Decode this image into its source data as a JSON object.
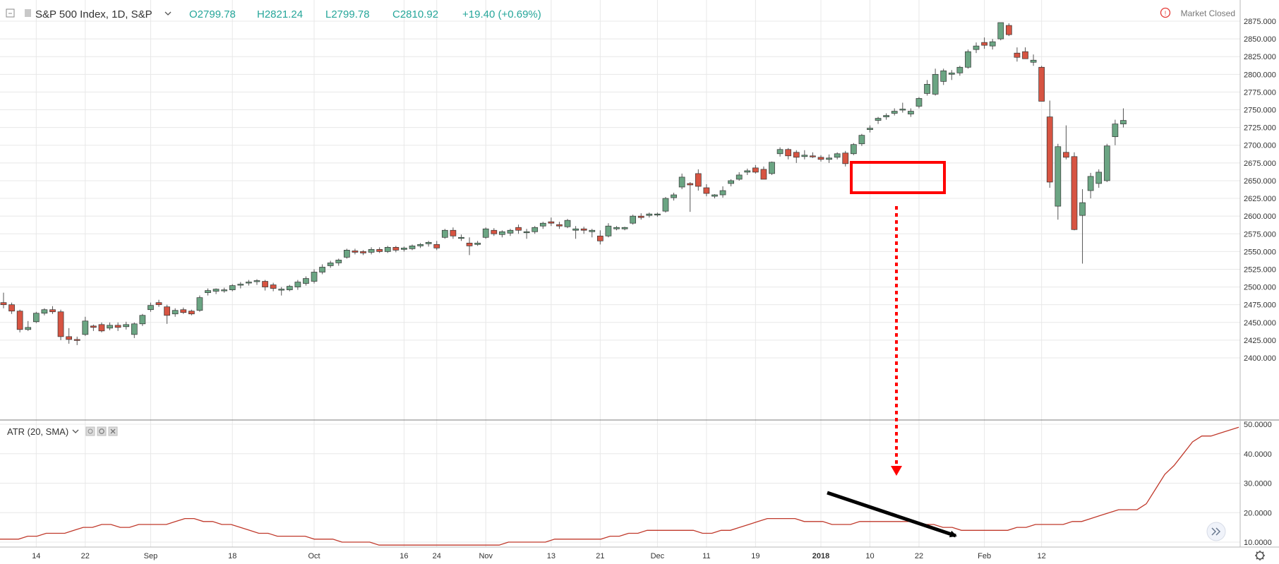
{
  "header": {
    "symbol_title": "S&P 500 Index, 1D, S&P",
    "open": "O2799.78",
    "high": "H2821.24",
    "low": "L2799.78",
    "close": "C2810.92",
    "change": "+19.40 (+0.69%)",
    "market_status": "Market Closed"
  },
  "indicator": {
    "label": "ATR (20, SMA)"
  },
  "colors": {
    "up": "#6ba583",
    "down": "#d75442",
    "wick": "#555555",
    "atr_line": "#c0392b",
    "header_values": "#26a69a",
    "highlight": "#ff0000"
  },
  "chart_data": [
    {
      "type": "candlestick",
      "title": "S&P 500 Index, 1D, S&P",
      "x_tick_labels": [
        "14",
        "22",
        "Sep",
        "18",
        "Oct",
        "16",
        "24",
        "Nov",
        "13",
        "21",
        "Dec",
        "11",
        "19",
        "2018",
        "10",
        "22",
        "Feb",
        "12"
      ],
      "y_tick_labels": [
        "2875.000",
        "2850.000",
        "2825.000",
        "2800.000",
        "2775.000",
        "2750.000",
        "2725.000",
        "2700.000",
        "2675.000",
        "2650.000",
        "2625.000",
        "2600.000",
        "2575.000",
        "2550.000",
        "2525.000",
        "2500.000",
        "2475.000",
        "2450.000",
        "2425.000",
        "2400.000"
      ],
      "ylim": [
        2391,
        2885
      ],
      "grid": true,
      "candles": [
        [
          2478,
          2492,
          2470,
          2475
        ],
        [
          2475,
          2478,
          2462,
          2466
        ],
        [
          2466,
          2468,
          2436,
          2440
        ],
        [
          2440,
          2452,
          2438,
          2443
        ],
        [
          2451,
          2465,
          2449,
          2463
        ],
        [
          2463,
          2470,
          2460,
          2468
        ],
        [
          2468,
          2473,
          2462,
          2465
        ],
        [
          2465,
          2468,
          2425,
          2430
        ],
        [
          2430,
          2442,
          2420,
          2426
        ],
        [
          2426,
          2430,
          2418,
          2425
        ],
        [
          2433,
          2458,
          2431,
          2452
        ],
        [
          2445,
          2447,
          2438,
          2443
        ],
        [
          2447,
          2450,
          2436,
          2438
        ],
        [
          2442,
          2450,
          2439,
          2446
        ],
        [
          2446,
          2450,
          2438,
          2443
        ],
        [
          2444,
          2451,
          2440,
          2447
        ],
        [
          2433,
          2450,
          2428,
          2448
        ],
        [
          2448,
          2462,
          2445,
          2460
        ],
        [
          2468,
          2478,
          2465,
          2474
        ],
        [
          2478,
          2482,
          2472,
          2475
        ],
        [
          2472,
          2475,
          2448,
          2460
        ],
        [
          2462,
          2470,
          2458,
          2467
        ],
        [
          2468,
          2471,
          2462,
          2464
        ],
        [
          2466,
          2468,
          2460,
          2462
        ],
        [
          2467,
          2488,
          2465,
          2485
        ],
        [
          2492,
          2498,
          2488,
          2495
        ],
        [
          2494,
          2498,
          2490,
          2497
        ],
        [
          2495,
          2499,
          2492,
          2496
        ],
        [
          2496,
          2504,
          2494,
          2502
        ],
        [
          2503,
          2507,
          2498,
          2504
        ],
        [
          2506,
          2510,
          2502,
          2507
        ],
        [
          2508,
          2511,
          2503,
          2509
        ],
        [
          2508,
          2510,
          2495,
          2500
        ],
        [
          2503,
          2506,
          2494,
          2498
        ],
        [
          2496,
          2500,
          2488,
          2497
        ],
        [
          2496,
          2503,
          2494,
          2501
        ],
        [
          2500,
          2510,
          2496,
          2507
        ],
        [
          2505,
          2515,
          2502,
          2512
        ],
        [
          2508,
          2525,
          2505,
          2521
        ],
        [
          2521,
          2532,
          2518,
          2528
        ],
        [
          2530,
          2537,
          2527,
          2534
        ],
        [
          2534,
          2540,
          2530,
          2538
        ],
        [
          2542,
          2554,
          2540,
          2552
        ],
        [
          2551,
          2554,
          2546,
          2549
        ],
        [
          2550,
          2552,
          2545,
          2548
        ],
        [
          2549,
          2556,
          2546,
          2553
        ],
        [
          2553,
          2556,
          2548,
          2550
        ],
        [
          2550,
          2558,
          2548,
          2556
        ],
        [
          2556,
          2558,
          2549,
          2552
        ],
        [
          2553,
          2557,
          2550,
          2555
        ],
        [
          2554,
          2560,
          2552,
          2558
        ],
        [
          2558,
          2562,
          2555,
          2560
        ],
        [
          2561,
          2565,
          2557,
          2563
        ],
        [
          2560,
          2565,
          2552,
          2555
        ],
        [
          2570,
          2582,
          2568,
          2580
        ],
        [
          2580,
          2584,
          2568,
          2572
        ],
        [
          2570,
          2574,
          2565,
          2570
        ],
        [
          2562,
          2570,
          2545,
          2558
        ],
        [
          2560,
          2565,
          2558,
          2562
        ],
        [
          2570,
          2584,
          2568,
          2582
        ],
        [
          2580,
          2583,
          2572,
          2575
        ],
        [
          2574,
          2580,
          2570,
          2578
        ],
        [
          2576,
          2582,
          2572,
          2580
        ],
        [
          2584,
          2588,
          2575,
          2580
        ],
        [
          2578,
          2582,
          2568,
          2578
        ],
        [
          2578,
          2586,
          2575,
          2584
        ],
        [
          2586,
          2592,
          2582,
          2590
        ],
        [
          2592,
          2598,
          2586,
          2590
        ],
        [
          2588,
          2592,
          2582,
          2586
        ],
        [
          2585,
          2596,
          2583,
          2594
        ],
        [
          2580,
          2586,
          2568,
          2582
        ],
        [
          2582,
          2585,
          2575,
          2580
        ],
        [
          2578,
          2582,
          2570,
          2580
        ],
        [
          2572,
          2580,
          2560,
          2565
        ],
        [
          2572,
          2590,
          2570,
          2586
        ],
        [
          2582,
          2586,
          2580,
          2584
        ],
        [
          2582,
          2585,
          2580,
          2584
        ],
        [
          2590,
          2602,
          2588,
          2600
        ],
        [
          2600,
          2604,
          2595,
          2598
        ],
        [
          2601,
          2605,
          2598,
          2603
        ],
        [
          2602,
          2605,
          2599,
          2603
        ],
        [
          2607,
          2627,
          2605,
          2625
        ],
        [
          2626,
          2633,
          2622,
          2630
        ],
        [
          2641,
          2660,
          2638,
          2655
        ],
        [
          2646,
          2648,
          2606,
          2644
        ],
        [
          2660,
          2666,
          2636,
          2642
        ],
        [
          2640,
          2645,
          2628,
          2632
        ],
        [
          2628,
          2631,
          2625,
          2630
        ],
        [
          2630,
          2642,
          2626,
          2636
        ],
        [
          2646,
          2652,
          2642,
          2650
        ],
        [
          2652,
          2662,
          2650,
          2658
        ],
        [
          2662,
          2667,
          2658,
          2664
        ],
        [
          2668,
          2672,
          2660,
          2662
        ],
        [
          2666,
          2670,
          2653,
          2652
        ],
        [
          2660,
          2677,
          2658,
          2676
        ],
        [
          2688,
          2697,
          2684,
          2694
        ],
        [
          2694,
          2696,
          2680,
          2685
        ],
        [
          2690,
          2693,
          2675,
          2683
        ],
        [
          2684,
          2693,
          2680,
          2686
        ],
        [
          2685,
          2690,
          2682,
          2684
        ],
        [
          2683,
          2686,
          2677,
          2680
        ],
        [
          2680,
          2687,
          2675,
          2682
        ],
        [
          2683,
          2690,
          2680,
          2688
        ],
        [
          2689,
          2692,
          2670,
          2674
        ],
        [
          2688,
          2703,
          2686,
          2701
        ],
        [
          2702,
          2716,
          2699,
          2714
        ],
        [
          2722,
          2728,
          2718,
          2724
        ],
        [
          2735,
          2740,
          2730,
          2738
        ],
        [
          2740,
          2745,
          2736,
          2742
        ],
        [
          2745,
          2752,
          2742,
          2748
        ],
        [
          2750,
          2760,
          2746,
          2751
        ],
        [
          2744,
          2752,
          2740,
          2748
        ],
        [
          2755,
          2768,
          2752,
          2766
        ],
        [
          2773,
          2792,
          2770,
          2786
        ],
        [
          2772,
          2808,
          2770,
          2800
        ],
        [
          2790,
          2808,
          2785,
          2805
        ],
        [
          2800,
          2806,
          2792,
          2802
        ],
        [
          2802,
          2812,
          2798,
          2810
        ],
        [
          2810,
          2835,
          2808,
          2832
        ],
        [
          2835,
          2845,
          2830,
          2840
        ],
        [
          2845,
          2852,
          2836,
          2841
        ],
        [
          2840,
          2850,
          2835,
          2846
        ],
        [
          2850,
          2872,
          2848,
          2873
        ],
        [
          2869,
          2872,
          2854,
          2856
        ],
        [
          2830,
          2838,
          2818,
          2824
        ],
        [
          2832,
          2838,
          2822,
          2822
        ],
        [
          2817,
          2828,
          2812,
          2820
        ],
        [
          2810,
          2812,
          2765,
          2762
        ],
        [
          2740,
          2763,
          2640,
          2648
        ],
        [
          2614,
          2702,
          2595,
          2698
        ],
        [
          2690,
          2728,
          2680,
          2683
        ],
        [
          2684,
          2690,
          2580,
          2581
        ],
        [
          2601,
          2638,
          2533,
          2619
        ],
        [
          2636,
          2661,
          2625,
          2656
        ],
        [
          2646,
          2666,
          2640,
          2662
        ],
        [
          2650,
          2702,
          2648,
          2699
        ],
        [
          2712,
          2736,
          2700,
          2730
        ],
        [
          2730,
          2752,
          2725,
          2735
        ]
      ],
      "annotations": [
        "red box around December consolidation",
        "red dotted arrow pointing down to ATR panel"
      ]
    },
    {
      "type": "line",
      "title": "ATR (20, SMA)",
      "y_tick_labels": [
        "50.0000",
        "40.0000",
        "30.0000",
        "20.0000",
        "10.0000"
      ],
      "ylim": [
        6,
        51.5
      ],
      "grid": true,
      "series": [
        {
          "name": "ATR (20, SMA)",
          "values": [
            11,
            11,
            11,
            12,
            12,
            13,
            13,
            13,
            14,
            15,
            15,
            16,
            16,
            15,
            15,
            16,
            16,
            16,
            16,
            17,
            18,
            18,
            17,
            17,
            16,
            16,
            15,
            14,
            13,
            13,
            12,
            12,
            12,
            12,
            11,
            11,
            11,
            10,
            10,
            10,
            10,
            9,
            9,
            9,
            9,
            9,
            9,
            9,
            9,
            9,
            9,
            9,
            9,
            9,
            9,
            10,
            10,
            10,
            10,
            10,
            11,
            11,
            11,
            11,
            11,
            11,
            12,
            12,
            13,
            13,
            14,
            14,
            14,
            14,
            14,
            14,
            13,
            13,
            14,
            14,
            15,
            16,
            17,
            18,
            18,
            18,
            18,
            17,
            17,
            17,
            16,
            16,
            16,
            17,
            17,
            17,
            17,
            17,
            17,
            17,
            16,
            16,
            15,
            15,
            14,
            14,
            14,
            14,
            14,
            14,
            15,
            15,
            16,
            16,
            16,
            16,
            17,
            17,
            18,
            19,
            20,
            21,
            21,
            21,
            23,
            28,
            33,
            36,
            40,
            44,
            46,
            46,
            47,
            48,
            49
          ]
        }
      ],
      "annotations": [
        "black arrow showing declining ATR"
      ]
    }
  ]
}
